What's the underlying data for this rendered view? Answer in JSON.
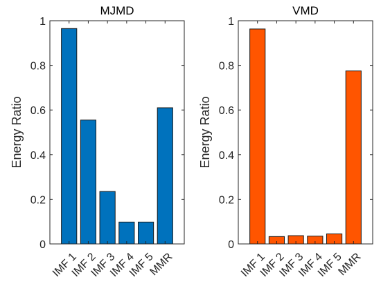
{
  "chart_data": [
    {
      "type": "bar",
      "title": "MJMD",
      "ylabel": "Energy Ratio",
      "xlabel": "",
      "ylim": [
        0,
        1
      ],
      "yticks": [
        0,
        0.2,
        0.4,
        0.6,
        0.8,
        1
      ],
      "ytick_labels": [
        "0",
        "0.2",
        "0.4",
        "0.6",
        "0.8",
        "1"
      ],
      "categories": [
        "IMF 1",
        "IMF 2",
        "IMF 3",
        "IMF 4",
        "IMF 5",
        "MMR"
      ],
      "values": [
        0.965,
        0.555,
        0.235,
        0.098,
        0.098,
        0.61
      ],
      "color": "#0072BD",
      "grid": false,
      "tick_label_rotation": -45
    },
    {
      "type": "bar",
      "title": "VMD",
      "ylabel": "Energy Ratio",
      "xlabel": "",
      "ylim": [
        0,
        1
      ],
      "yticks": [
        0,
        0.2,
        0.4,
        0.6,
        0.8,
        1
      ],
      "ytick_labels": [
        "0",
        "0.2",
        "0.4",
        "0.6",
        "0.8",
        "1"
      ],
      "categories": [
        "IMF 1",
        "IMF 2",
        "IMF 3",
        "IMF 4",
        "IMF 5",
        "MMR"
      ],
      "values": [
        0.963,
        0.033,
        0.037,
        0.035,
        0.045,
        0.775
      ],
      "color": "#FF5500",
      "grid": false,
      "tick_label_rotation": -45
    }
  ]
}
